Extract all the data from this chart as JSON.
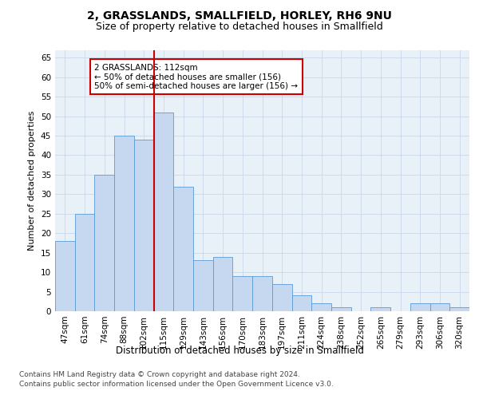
{
  "title": "2, GRASSLANDS, SMALLFIELD, HORLEY, RH6 9NU",
  "subtitle": "Size of property relative to detached houses in Smallfield",
  "xlabel": "Distribution of detached houses by size in Smallfield",
  "ylabel": "Number of detached properties",
  "categories": [
    "47sqm",
    "61sqm",
    "74sqm",
    "88sqm",
    "102sqm",
    "115sqm",
    "129sqm",
    "143sqm",
    "156sqm",
    "170sqm",
    "183sqm",
    "197sqm",
    "211sqm",
    "224sqm",
    "238sqm",
    "252sqm",
    "265sqm",
    "279sqm",
    "293sqm",
    "306sqm",
    "320sqm"
  ],
  "values": [
    18,
    25,
    35,
    45,
    44,
    51,
    32,
    13,
    14,
    9,
    9,
    7,
    4,
    2,
    1,
    0,
    1,
    0,
    2,
    2,
    1
  ],
  "bar_color": "#c5d8f0",
  "bar_edge_color": "#5b9bd5",
  "vline_x": 4.5,
  "vline_color": "#cc0000",
  "annotation_text": "2 GRASSLANDS: 112sqm\n← 50% of detached houses are smaller (156)\n50% of semi-detached houses are larger (156) →",
  "annotation_box_color": "#ffffff",
  "annotation_box_edge_color": "#cc0000",
  "ylim": [
    0,
    67
  ],
  "yticks": [
    0,
    5,
    10,
    15,
    20,
    25,
    30,
    35,
    40,
    45,
    50,
    55,
    60,
    65
  ],
  "grid_color": "#c8d8e8",
  "background_color": "#e8f0f8",
  "footer_line1": "Contains HM Land Registry data © Crown copyright and database right 2024.",
  "footer_line2": "Contains public sector information licensed under the Open Government Licence v3.0.",
  "title_fontsize": 10,
  "subtitle_fontsize": 9,
  "xlabel_fontsize": 8.5,
  "ylabel_fontsize": 8,
  "tick_fontsize": 7.5,
  "annotation_fontsize": 7.5,
  "footer_fontsize": 6.5
}
